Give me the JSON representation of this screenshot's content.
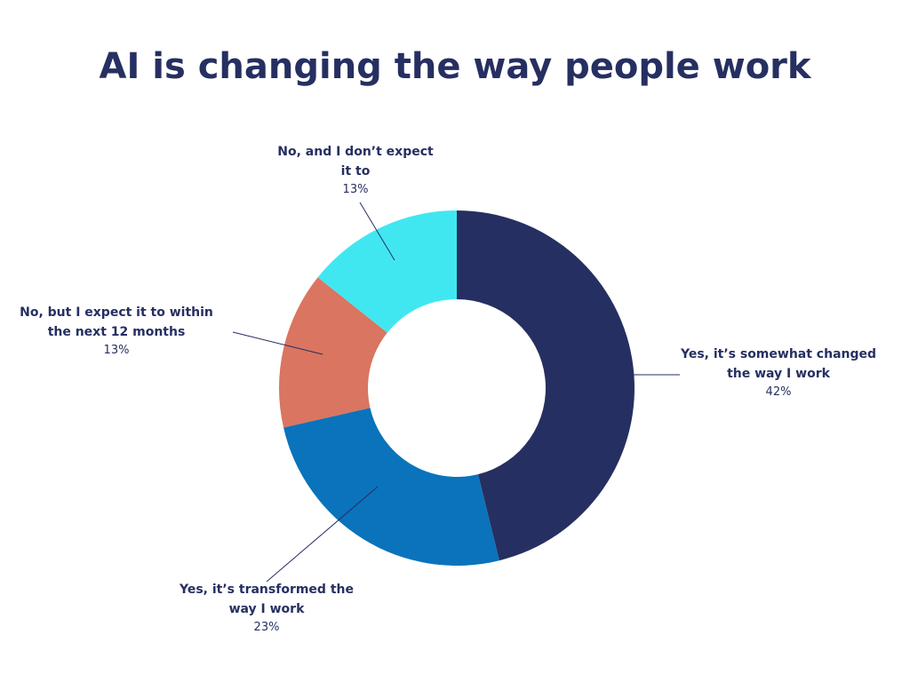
{
  "chart_data": {
    "type": "donut",
    "title": "AI is changing the way people work",
    "categories": [
      "Yes, it’s somewhat changed the way I work",
      "Yes, it’s transformed the way I work",
      "No, but I expect it to within the next 12 months",
      "No, and I don’t expect it to"
    ],
    "values": [
      42,
      23,
      13,
      13
    ],
    "value_labels": [
      "42%",
      "23%",
      "13%",
      "13%"
    ],
    "colors": [
      "#262f61",
      "#0a73bb",
      "#d97560",
      "#40e7f1"
    ]
  }
}
